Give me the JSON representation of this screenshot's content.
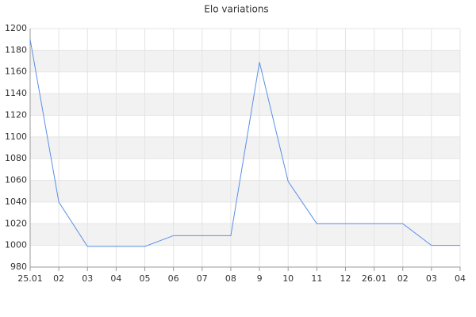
{
  "chart_data": {
    "type": "line",
    "title": "Elo variations",
    "categories": [
      "25.01",
      "02",
      "03",
      "04",
      "05",
      "06",
      "07",
      "08",
      "9",
      "10",
      "11",
      "12",
      "26.01",
      "02",
      "03",
      "04"
    ],
    "series": [
      {
        "color": "#5b8fe8",
        "values": [
          1190,
          1040,
          999,
          999,
          999,
          1009,
          1009,
          1009,
          1169,
          1059,
          1020,
          1020,
          1020,
          1020,
          1000,
          1000
        ]
      }
    ],
    "ylim": [
      980,
      1200
    ],
    "yticks": [
      980,
      1000,
      1020,
      1040,
      1060,
      1080,
      1100,
      1120,
      1140,
      1160,
      1180,
      1200
    ],
    "grid": true
  }
}
